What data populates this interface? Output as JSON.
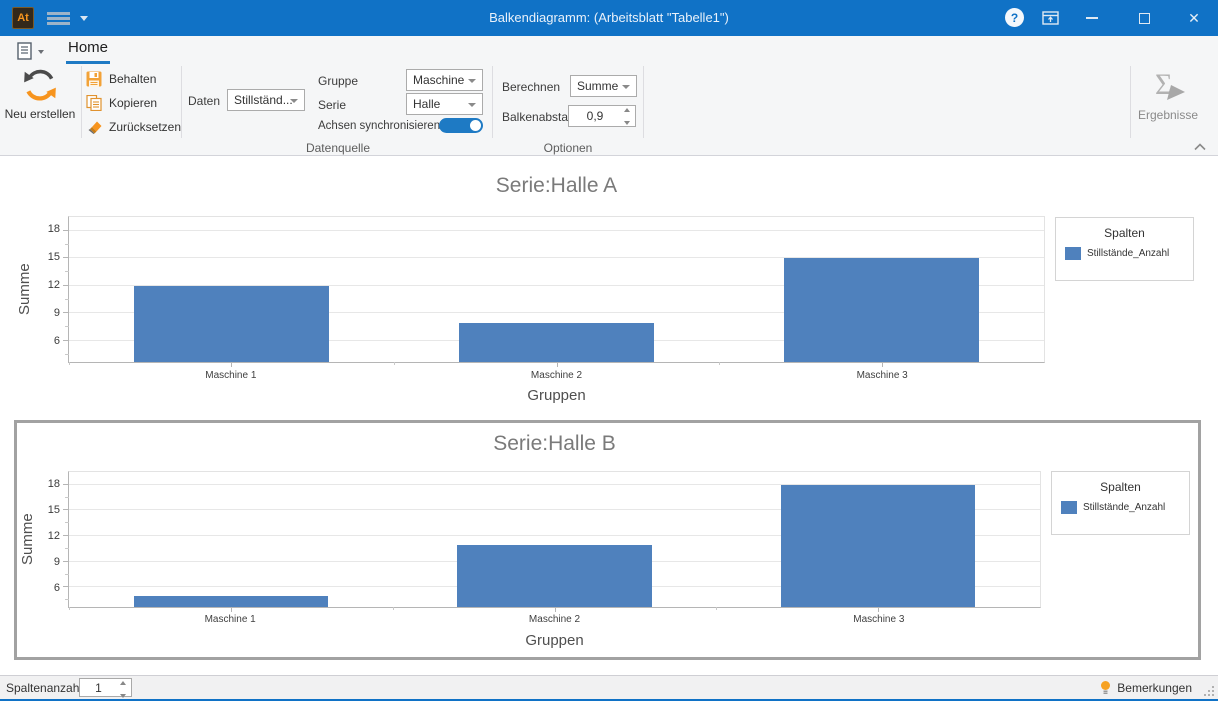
{
  "titlebar": {
    "logo": "At",
    "title": "Balkendiagramm:  (Arbeitsblatt \"Tabelle1\")",
    "help": "?"
  },
  "ribbon": {
    "home_tab": "Home",
    "neu_erstellen": "Neu erstellen",
    "behalten": "Behalten",
    "kopieren": "Kopieren",
    "zuruecksetzen": "Zurücksetzen",
    "daten_label": "Daten",
    "daten_value": "Stillständ...",
    "gruppe_label": "Gruppe",
    "gruppe_value": "Maschine",
    "serie_label": "Serie",
    "serie_value": "Halle",
    "achsen_sync_label": "Achsen synchronisieren",
    "achsen_sync_on": true,
    "berechnen_label": "Berechnen",
    "berechnen_value": "Summe",
    "balkenabstand_label": "Balkenabstand",
    "balkenabstand_value": "0,9",
    "datenquelle_caption": "Datenquelle",
    "optionen_caption": "Optionen",
    "ergebnisse": "Ergebnisse"
  },
  "statusbar": {
    "spaltenanzahl_label": "Spaltenanzahl",
    "spaltenanzahl_value": "1",
    "bemerkungen_label": "Bemerkungen"
  },
  "colors": {
    "titlebar_blue": "#1072c6",
    "accent_blue": "#1e7ac4",
    "icon_orange": "#f7941e",
    "bar_blue": "#4f81bd"
  },
  "chart_data": [
    {
      "type": "bar",
      "title": "Serie:Halle A",
      "categories": [
        "Maschine 1",
        "Maschine 2",
        "Maschine 3"
      ],
      "values": [
        12,
        8,
        15
      ],
      "xlabel": "Gruppen",
      "ylabel": "Summe",
      "yticks": [
        6,
        9,
        12,
        15,
        18
      ],
      "ylim": [
        3.7,
        19.5
      ],
      "grid": true,
      "bar_color": "#4f81bd",
      "bar_width_ratio": 0.6,
      "selected": false,
      "legend": {
        "position": "right",
        "title": "Spalten",
        "entries": [
          {
            "label": "Stillstände_Anzahl",
            "color": "#4f81bd"
          }
        ]
      }
    },
    {
      "type": "bar",
      "title": "Serie:Halle B",
      "categories": [
        "Maschine 1",
        "Maschine 2",
        "Maschine 3"
      ],
      "values": [
        5,
        11,
        18
      ],
      "xlabel": "Gruppen",
      "ylabel": "Summe",
      "yticks": [
        6,
        9,
        12,
        15,
        18
      ],
      "ylim": [
        3.7,
        19.5
      ],
      "grid": true,
      "bar_color": "#4f81bd",
      "bar_width_ratio": 0.6,
      "selected": true,
      "legend": {
        "position": "right",
        "title": "Spalten",
        "entries": [
          {
            "label": "Stillstände_Anzahl",
            "color": "#4f81bd"
          }
        ]
      }
    }
  ]
}
